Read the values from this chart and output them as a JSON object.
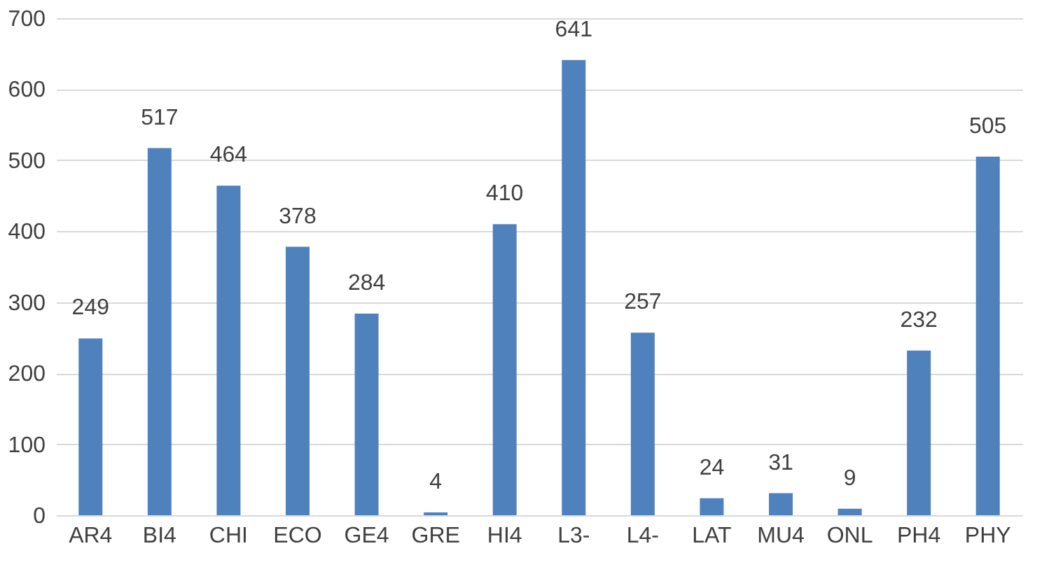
{
  "chart_data": {
    "type": "bar",
    "categories": [
      "AR4",
      "BI4",
      "CHI",
      "ECO",
      "GE4",
      "GRE",
      "HI4",
      "L3-",
      "L4-",
      "LAT",
      "MU4",
      "ONL",
      "PH4",
      "PHY"
    ],
    "values": [
      249,
      517,
      464,
      378,
      284,
      4,
      410,
      641,
      257,
      24,
      31,
      9,
      232,
      505
    ],
    "color": "#4f81bd",
    "ylim": [
      0,
      700
    ],
    "yticks": [
      0,
      100,
      200,
      300,
      400,
      500,
      600,
      700
    ],
    "grid": "y",
    "data_labels": true
  }
}
